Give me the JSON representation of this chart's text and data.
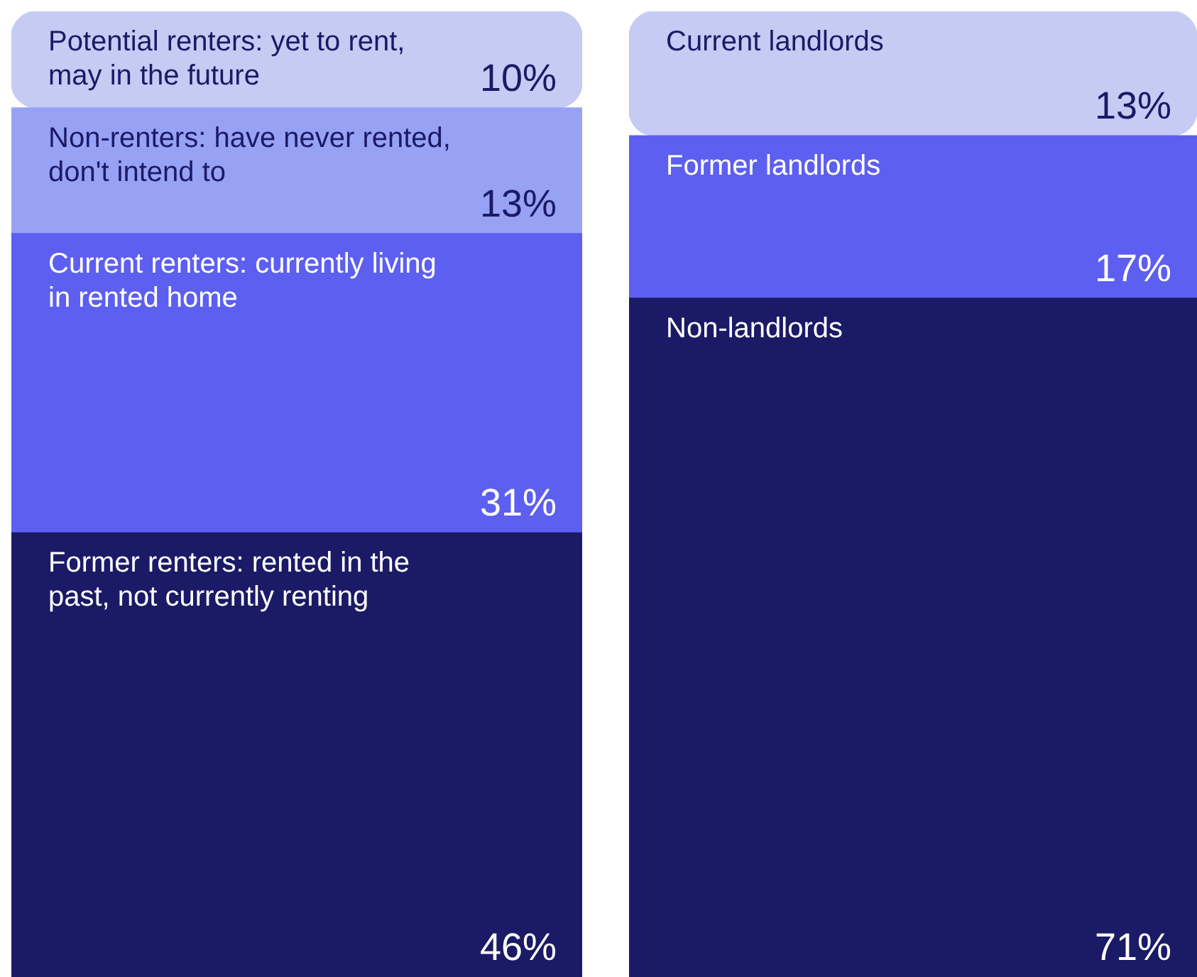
{
  "chart_data": [
    {
      "type": "bar",
      "stacked": true,
      "categories": [
        null
      ],
      "series": [
        {
          "name": "Former renters: rented in the past, not currently renting",
          "color": "#1b1a66",
          "values": [
            46
          ],
          "value_labels": [
            "46%"
          ]
        },
        {
          "name": "Current renters: currently living in rented home",
          "color": "#5d5ff0",
          "values": [
            31
          ],
          "value_labels": [
            "31%"
          ]
        },
        {
          "name": "Non-renters: have never rented, don't intend to",
          "color": "#98a2f5",
          "values": [
            13
          ],
          "value_labels": [
            "13%"
          ]
        },
        {
          "name": "Potential renters: yet to rent, may in the future",
          "color": "#c5cbf3",
          "values": [
            10
          ],
          "value_labels": [
            "10%"
          ]
        }
      ]
    },
    {
      "type": "bar",
      "stacked": true,
      "categories": [
        null
      ],
      "series": [
        {
          "name": "Non-landlords",
          "color": "#1b1a66",
          "values": [
            71
          ],
          "value_labels": [
            "71%"
          ]
        },
        {
          "name": "Former landlords",
          "color": "#5d5ff0",
          "values": [
            17
          ],
          "value_labels": [
            "17%"
          ]
        },
        {
          "name": "Current landlords",
          "color": "#c5cbf3",
          "values": [
            13
          ],
          "value_labels": [
            "13%"
          ]
        }
      ]
    }
  ]
}
